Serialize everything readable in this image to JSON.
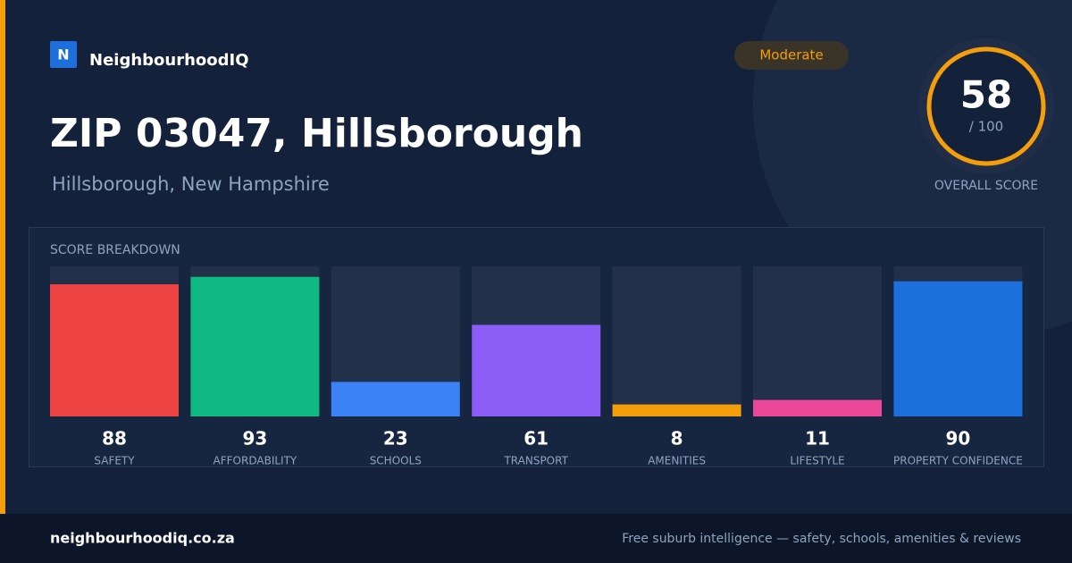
{
  "brand": {
    "logo": "N",
    "name": "NeighbourhoodIQ"
  },
  "badge": "Moderate",
  "title": "ZIP 03047, Hillsborough",
  "subtitle": "Hillsborough, New Hampshire",
  "overall": {
    "score": 58,
    "max_label": "/ 100",
    "label": "OVERALL SCORE"
  },
  "chart_data": {
    "type": "bar",
    "title": "SCORE BREAKDOWN",
    "categories": [
      "SAFETY",
      "AFFORDABILITY",
      "SCHOOLS",
      "TRANSPORT",
      "AMENITIES",
      "LIFESTYLE",
      "PROPERTY CONFIDENCE"
    ],
    "values": [
      88,
      93,
      23,
      61,
      8,
      11,
      90
    ],
    "colors": [
      "#ef4444",
      "#10b981",
      "#3b82f6",
      "#8b5cf6",
      "#f59e0b",
      "#ec4899",
      "#1d6fdc"
    ],
    "ylim": [
      0,
      100
    ]
  },
  "footer": {
    "site": "neighbourhoodiq.co.za",
    "tagline": "Free suburb intelligence — safety, schools, amenities & reviews"
  }
}
